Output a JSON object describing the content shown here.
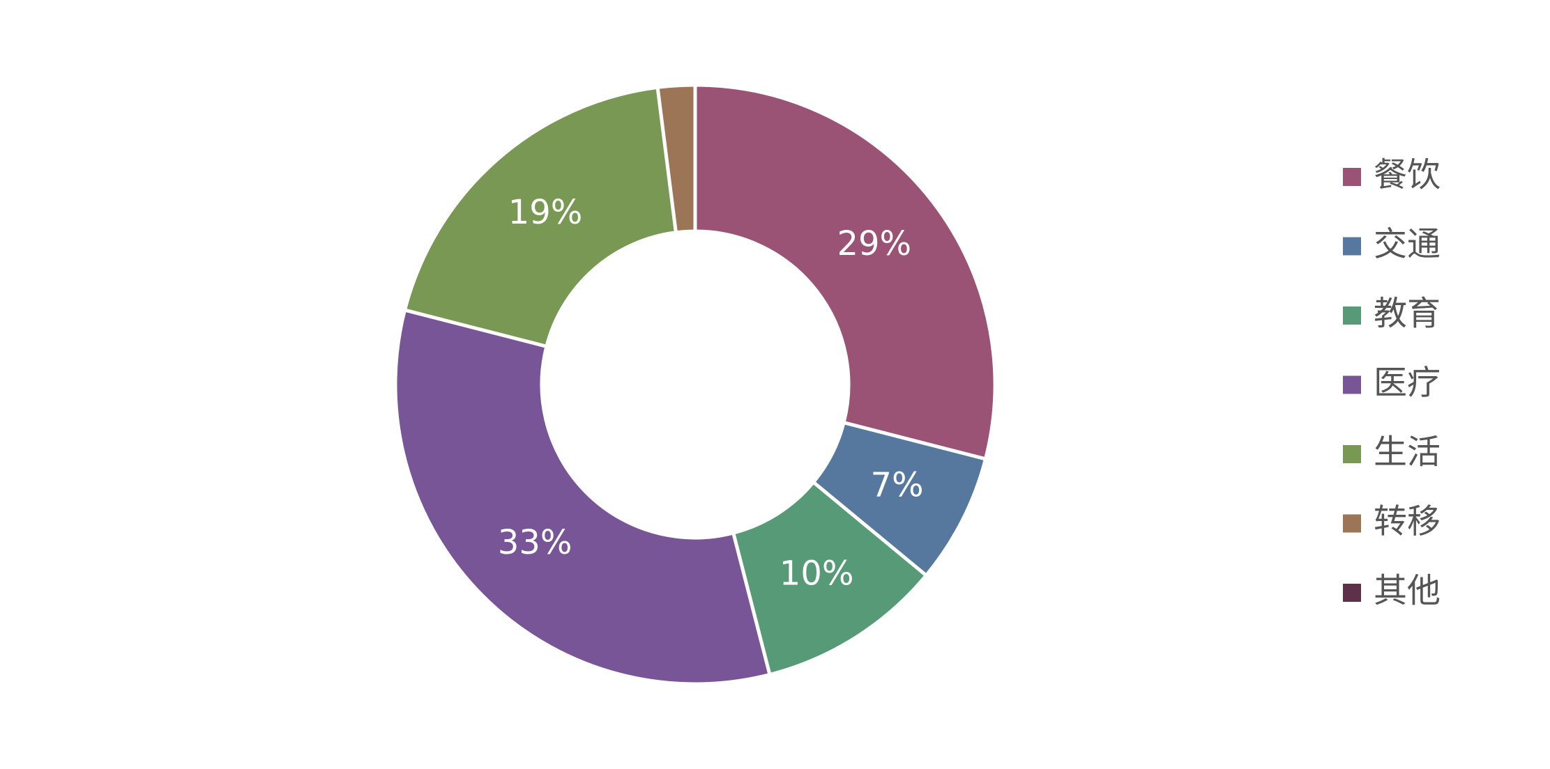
{
  "chart_data": {
    "type": "pie",
    "categories": [
      "餐饮",
      "交通",
      "教育",
      "医疗",
      "生活",
      "转移",
      "其他"
    ],
    "values": [
      29,
      7,
      10,
      33,
      19,
      2,
      0
    ],
    "value_labels": [
      "29%",
      "7%",
      "10%",
      "33%",
      "19%",
      null,
      null
    ],
    "colors": [
      "#9a5275",
      "#56789e",
      "#579a77",
      "#775596",
      "#789853",
      "#9c7556",
      "#5e3049"
    ],
    "donut": true,
    "legend": "right"
  }
}
